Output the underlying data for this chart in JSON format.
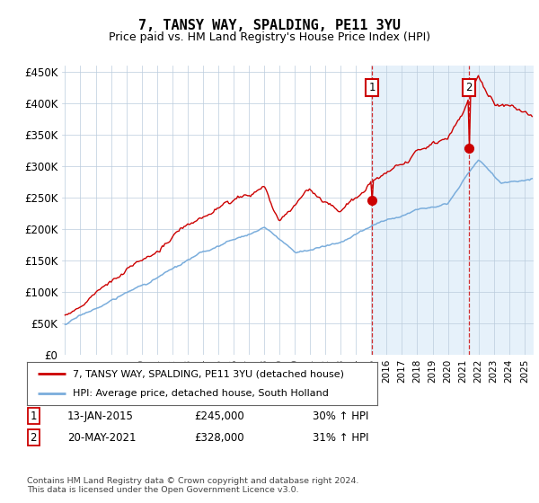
{
  "title": "7, TANSY WAY, SPALDING, PE11 3YU",
  "subtitle": "Price paid vs. HM Land Registry's House Price Index (HPI)",
  "ylim": [
    0,
    460000
  ],
  "yticks": [
    0,
    50000,
    100000,
    150000,
    200000,
    250000,
    300000,
    350000,
    400000,
    450000
  ],
  "ytick_labels": [
    "£0",
    "£50K",
    "£100K",
    "£150K",
    "£200K",
    "£250K",
    "£300K",
    "£350K",
    "£400K",
    "£450K"
  ],
  "hpi_color": "#7aaddc",
  "price_color": "#cc0000",
  "vline_color": "#cc0000",
  "sale1_x": 2015.04,
  "sale2_x": 2021.38,
  "sale1_price": 245000,
  "sale2_price": 328000,
  "legend_label_price": "7, TANSY WAY, SPALDING, PE11 3YU (detached house)",
  "legend_label_hpi": "HPI: Average price, detached house, South Holland",
  "table_row1": [
    "1",
    "13-JAN-2015",
    "£245,000",
    "30% ↑ HPI"
  ],
  "table_row2": [
    "2",
    "20-MAY-2021",
    "£328,000",
    "31% ↑ HPI"
  ],
  "footer": "Contains HM Land Registry data © Crown copyright and database right 2024.\nThis data is licensed under the Open Government Licence v3.0.",
  "background_color": "#ffffff",
  "plot_bg_color": "#ddeeff",
  "grid_color": "#bbccdd",
  "start_year": 1995.0,
  "end_year": 2025.5
}
